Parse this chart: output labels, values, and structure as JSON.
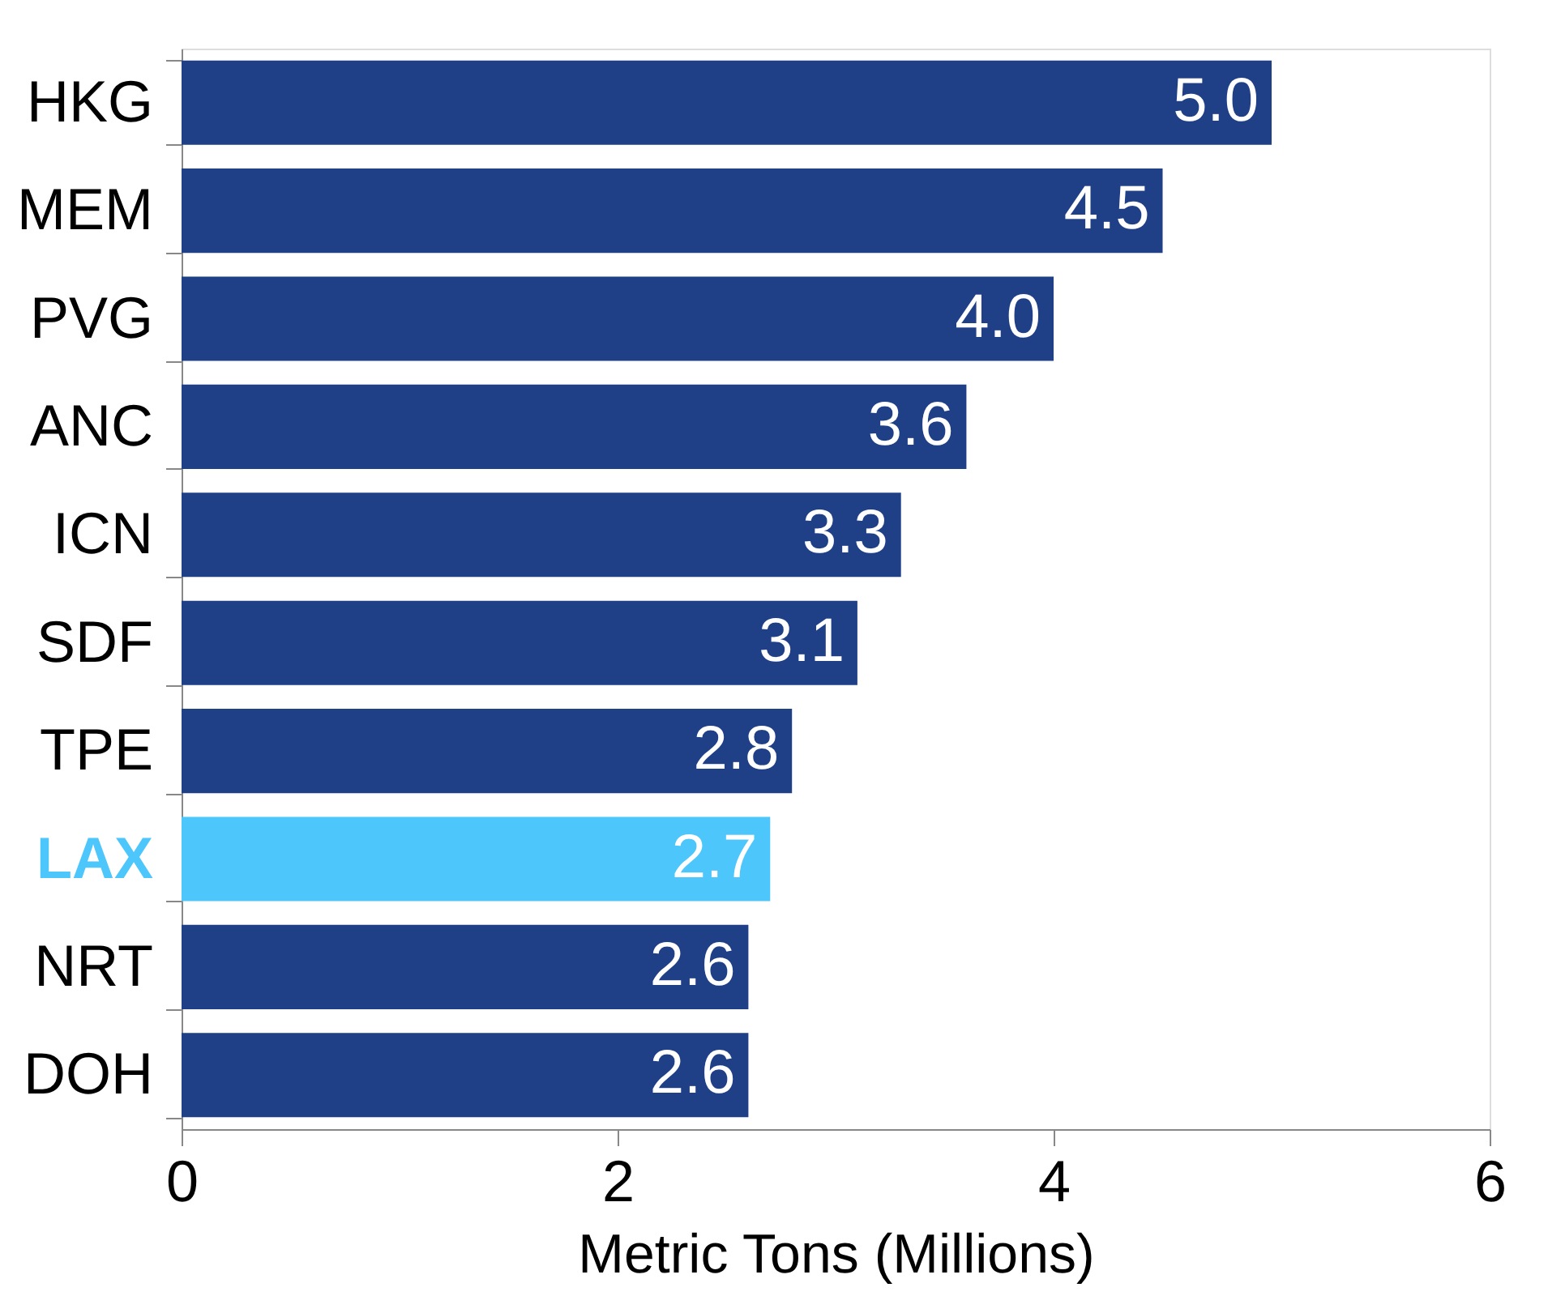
{
  "chart_data": {
    "type": "bar",
    "orientation": "horizontal",
    "xlabel": "Metric Tons (Millions)",
    "categories": [
      "HKG",
      "MEM",
      "PVG",
      "ANC",
      "ICN",
      "SDF",
      "TPE",
      "LAX",
      "NRT",
      "DOH"
    ],
    "values": [
      5.0,
      4.5,
      4.0,
      3.6,
      3.3,
      3.1,
      2.8,
      2.7,
      2.6,
      2.6
    ],
    "colors": [
      "#1f3f87",
      "#1f3f87",
      "#1f3f87",
      "#1f3f87",
      "#1f3f87",
      "#1f3f87",
      "#1f3f87",
      "#4dc6fb",
      "#1f3f87",
      "#1f3f87"
    ],
    "value_labels": [
      "5.0",
      "4.5",
      "4.0",
      "3.6",
      "3.3",
      "3.1",
      "2.8",
      "2.7",
      "2.6",
      "2.6"
    ],
    "xlim": [
      0,
      6
    ],
    "xticks": [
      0,
      2,
      4,
      6
    ],
    "grid": false
  }
}
